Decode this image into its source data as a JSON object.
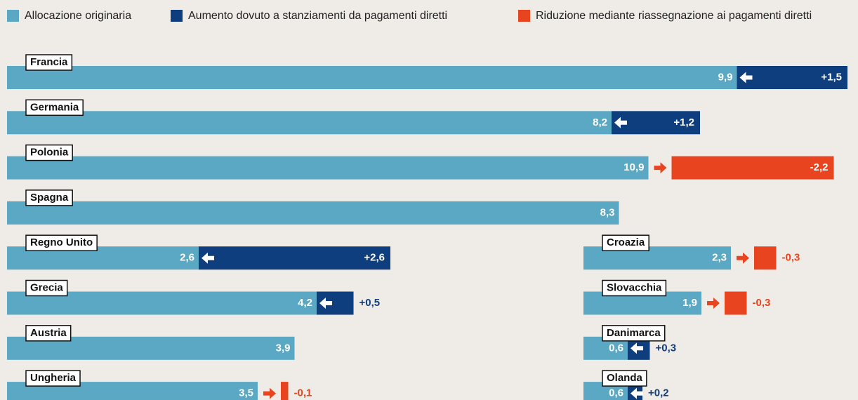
{
  "chart_data": {
    "type": "bar",
    "categories": [
      "Francia",
      "Germania",
      "Polonia",
      "Spagna",
      "Regno Unito",
      "Grecia",
      "Austria",
      "Ungheria",
      "Croazia",
      "Slovacchia",
      "Danimarca",
      "Olanda"
    ],
    "series": [
      {
        "name": "Allocazione originaria",
        "color": "#5ba8c4",
        "values": [
          9.9,
          8.2,
          10.9,
          8.3,
          2.6,
          4.2,
          3.9,
          3.5,
          2.3,
          1.9,
          0.6,
          0.6
        ],
        "value_labels": [
          "9,9",
          "8,2",
          "10,9",
          "8,3",
          "2,6",
          "4,2",
          "3,9",
          "3,5",
          "2,3",
          "1,9",
          "0,6",
          "0,6"
        ]
      },
      {
        "name": "Aumento dovuto a stanziamenti da pagamenti diretti",
        "color": "#0f3e7f",
        "values": [
          1.5,
          1.2,
          null,
          null,
          2.6,
          0.5,
          null,
          null,
          null,
          null,
          0.3,
          0.2
        ],
        "value_labels": [
          "+1,5",
          "+1,2",
          null,
          null,
          "+2,6",
          "+0,5",
          null,
          null,
          null,
          null,
          "+0,3",
          "+0,2"
        ]
      },
      {
        "name": "Riduzione mediante riassegnazione ai pagamenti diretti",
        "color": "#e8441f",
        "values": [
          null,
          null,
          -2.2,
          null,
          null,
          null,
          null,
          -0.1,
          -0.3,
          -0.3,
          null,
          null
        ],
        "value_labels": [
          null,
          null,
          "-2,2",
          null,
          null,
          null,
          null,
          "-0,1",
          "-0,3",
          "-0,3",
          null,
          null
        ]
      }
    ]
  }
}
